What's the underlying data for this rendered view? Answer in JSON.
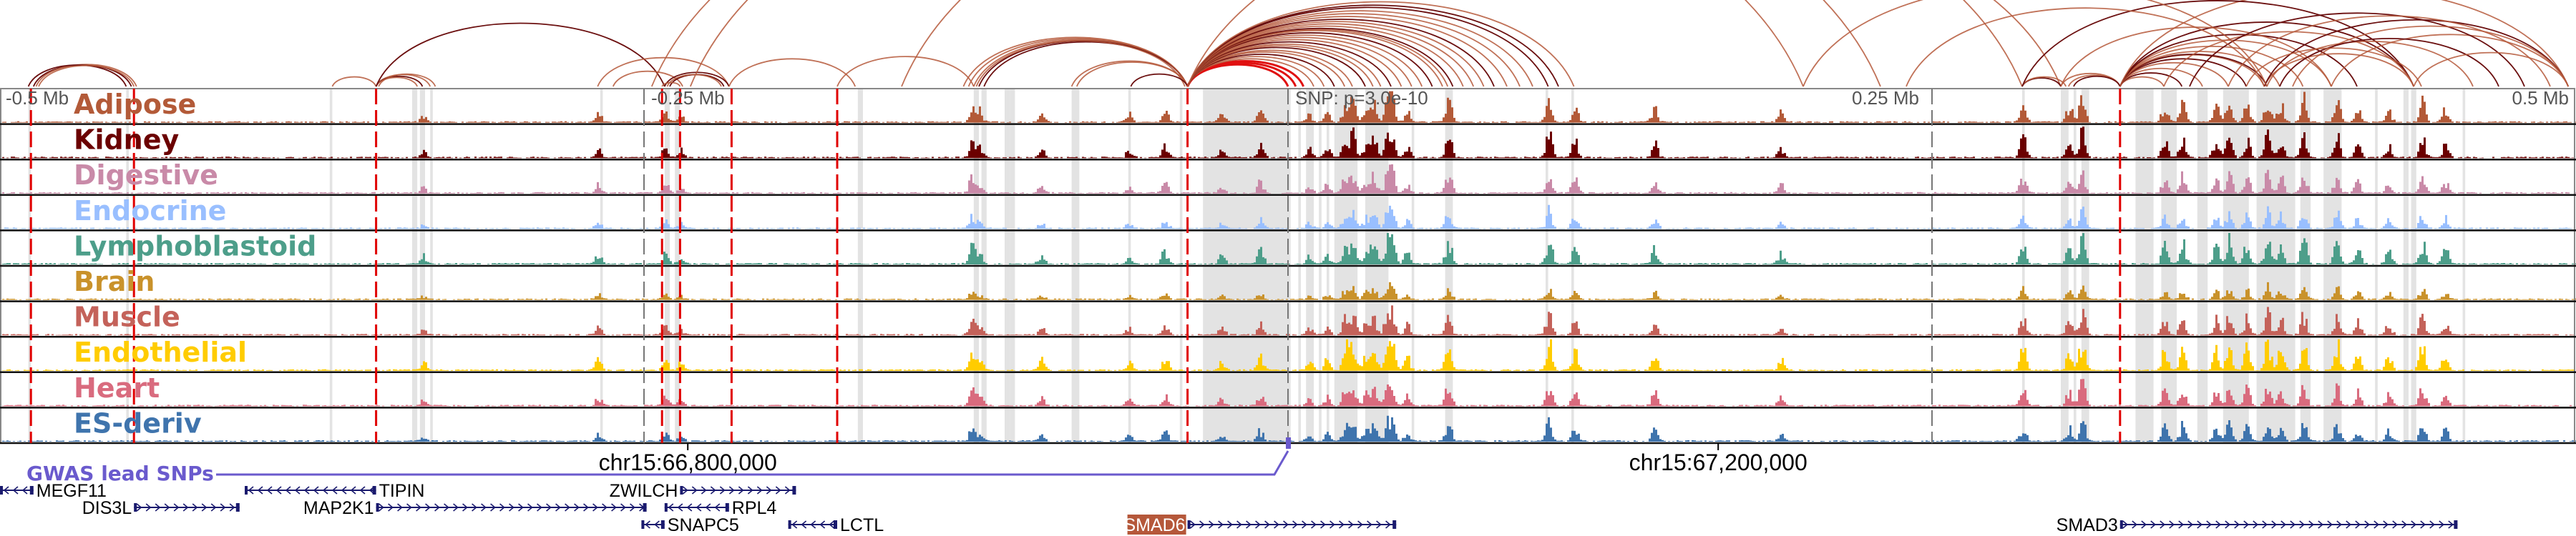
{
  "chart_data": {
    "type": "area",
    "title": "",
    "x_unit": "kb relative to lead SNP",
    "xlim": [
      -500,
      500
    ],
    "axis_labels": {
      "left": "-0.5 Mb",
      "left_mid": "-0.25 Mb",
      "center": "SNP: p=3.0e-10",
      "right_mid": "0.25 Mb",
      "right": "0.5 Mb"
    },
    "axis_ticks_kb": [
      -250,
      0,
      250
    ],
    "chrom_ticks": [
      {
        "kb": -233,
        "label": "chr15:66,800,000"
      },
      {
        "kb": 167,
        "label": "chr15:67,200,000"
      }
    ],
    "tracks": [
      {
        "name": "Adipose",
        "color": "#b35a38",
        "scale": 1.0
      },
      {
        "name": "Kidney",
        "color": "#6b0000",
        "scale": 1.0
      },
      {
        "name": "Digestive",
        "color": "#c98aa8",
        "scale": 0.9
      },
      {
        "name": "Endocrine",
        "color": "#99bfff",
        "scale": 0.7
      },
      {
        "name": "Lymphoblastoid",
        "color": "#4d9e8a",
        "scale": 1.1
      },
      {
        "name": "Brain",
        "color": "#c9922b",
        "scale": 0.5
      },
      {
        "name": "Muscle",
        "color": "#c4625a",
        "scale": 0.9
      },
      {
        "name": "Endothelial",
        "color": "#ffcc00",
        "scale": 1.2
      },
      {
        "name": "Heart",
        "color": "#d96b7e",
        "scale": 0.9
      },
      {
        "name": "ES-deriv",
        "color": "#3f74ad",
        "scale": 0.8
      }
    ],
    "peaks_kb": [
      [
        -336,
        0.25
      ],
      [
        -268,
        0.35
      ],
      [
        -242,
        0.4
      ],
      [
        -236,
        0.25
      ],
      [
        -123,
        0.65
      ],
      [
        -120,
        0.4
      ],
      [
        -96,
        0.3
      ],
      [
        -62,
        0.3
      ],
      [
        -48,
        0.5
      ],
      [
        -26,
        0.3
      ],
      [
        -11,
        0.5
      ],
      [
        8,
        0.3
      ],
      [
        15,
        0.35
      ],
      [
        22,
        0.7
      ],
      [
        25,
        0.8
      ],
      [
        30,
        0.5
      ],
      [
        33,
        0.7
      ],
      [
        38,
        0.6
      ],
      [
        40,
        0.9
      ],
      [
        46,
        0.4
      ],
      [
        62,
        0.85
      ],
      [
        101,
        0.9
      ],
      [
        111,
        0.6
      ],
      [
        142,
        0.5
      ],
      [
        191,
        0.35
      ],
      [
        285,
        0.7
      ],
      [
        303,
        0.6
      ],
      [
        308,
        0.95
      ],
      [
        340,
        0.6
      ],
      [
        347,
        0.7
      ],
      [
        360,
        0.6
      ],
      [
        365,
        0.8
      ],
      [
        372,
        0.7
      ],
      [
        380,
        0.9
      ],
      [
        385,
        0.7
      ],
      [
        394,
        0.85
      ],
      [
        407,
        0.8
      ],
      [
        415,
        0.5
      ],
      [
        427,
        0.45
      ],
      [
        440,
        0.75
      ],
      [
        449,
        0.5
      ]
    ],
    "highlight_bands_kb": [
      [
        -489,
        -488
      ],
      [
        -451,
        -450
      ],
      [
        -372,
        -371
      ],
      [
        -340,
        -338
      ],
      [
        -337,
        -335
      ],
      [
        -333,
        -332
      ],
      [
        -267,
        -266
      ],
      [
        -242,
        -240
      ],
      [
        -238,
        -236
      ],
      [
        -167,
        -165
      ],
      [
        -122,
        -120
      ],
      [
        -119,
        -117
      ],
      [
        -110,
        -108
      ],
      [
        -108,
        -106
      ],
      [
        -84,
        -81
      ],
      [
        -62,
        -61
      ],
      [
        -42,
        -41
      ],
      [
        -33,
        1
      ],
      [
        4,
        5
      ],
      [
        7,
        10
      ],
      [
        12,
        13
      ],
      [
        15,
        16
      ],
      [
        18,
        27
      ],
      [
        30,
        39
      ],
      [
        48,
        49
      ],
      [
        61,
        64
      ],
      [
        100,
        101
      ],
      [
        110,
        111
      ],
      [
        285,
        286
      ],
      [
        300,
        303
      ],
      [
        305,
        306
      ],
      [
        308,
        311
      ],
      [
        329,
        336
      ],
      [
        339,
        345
      ],
      [
        353,
        357
      ],
      [
        363,
        373
      ],
      [
        376,
        391
      ],
      [
        393,
        397
      ],
      [
        402,
        409
      ],
      [
        422,
        423
      ],
      [
        433,
        435
      ],
      [
        436,
        438
      ],
      [
        456,
        457
      ]
    ],
    "gwas_snp_lines_kb": [
      -488,
      -448,
      -354,
      -243,
      -236,
      -216,
      -175,
      -39,
      323
    ],
    "loops": [
      [
        -487,
        -449,
        1
      ],
      [
        -486,
        -447,
        0
      ],
      [
        -489,
        -451,
        1
      ],
      [
        -485,
        -448,
        0
      ],
      [
        -371,
        -354,
        0
      ],
      [
        -354,
        -333,
        0
      ],
      [
        -354,
        -336,
        1
      ],
      [
        -354,
        -338,
        0
      ],
      [
        -353,
        -331,
        0
      ],
      [
        -354,
        -242,
        1
      ],
      [
        -268,
        -217,
        0
      ],
      [
        -262,
        -235,
        0
      ],
      [
        -242,
        -217,
        1
      ],
      [
        -240,
        -219,
        1
      ],
      [
        -243,
        -236,
        0
      ],
      [
        -241,
        -220,
        0
      ],
      [
        -217,
        -168,
        0
      ],
      [
        -175,
        -122,
        0
      ],
      [
        -247,
        200,
        0
      ],
      [
        -232,
        230,
        0
      ],
      [
        -122,
        -39,
        0
      ],
      [
        -120,
        -39,
        1
      ],
      [
        -124,
        -39,
        0
      ],
      [
        -118,
        -39,
        1
      ],
      [
        -126,
        -39,
        0
      ],
      [
        -121,
        -40,
        0
      ],
      [
        -84,
        -39,
        0
      ],
      [
        -82,
        -39,
        0
      ],
      [
        -61,
        -39,
        1
      ],
      [
        -150,
        285,
        0
      ],
      [
        -39,
        0,
        2
      ],
      [
        -39,
        3,
        2
      ],
      [
        -39,
        6,
        2
      ],
      [
        -39,
        10,
        0
      ],
      [
        -39,
        14,
        0
      ],
      [
        -39,
        18,
        1
      ],
      [
        -39,
        22,
        0
      ],
      [
        -39,
        25,
        0
      ],
      [
        -39,
        30,
        1
      ],
      [
        -39,
        33,
        0
      ],
      [
        -39,
        36,
        0
      ],
      [
        -39,
        40,
        1
      ],
      [
        -39,
        44,
        0
      ],
      [
        -39,
        48,
        0
      ],
      [
        -39,
        52,
        0
      ],
      [
        -39,
        56,
        1
      ],
      [
        -39,
        60,
        0
      ],
      [
        -39,
        62,
        0
      ],
      [
        -39,
        64,
        1
      ],
      [
        -39,
        68,
        0
      ],
      [
        -39,
        72,
        0
      ],
      [
        -39,
        76,
        0
      ],
      [
        -39,
        80,
        1
      ],
      [
        -39,
        85,
        0
      ],
      [
        -39,
        90,
        0
      ],
      [
        -39,
        95,
        0
      ],
      [
        -39,
        101,
        1
      ],
      [
        -39,
        105,
        1
      ],
      [
        -39,
        111,
        0
      ],
      [
        -39,
        300,
        0
      ],
      [
        285,
        300,
        1
      ],
      [
        285,
        302,
        0
      ],
      [
        300,
        323,
        0
      ],
      [
        303,
        323,
        0
      ],
      [
        305,
        323,
        1
      ],
      [
        323,
        340,
        0
      ],
      [
        323,
        347,
        1
      ],
      [
        323,
        355,
        0
      ],
      [
        323,
        365,
        0
      ],
      [
        323,
        372,
        1
      ],
      [
        323,
        379,
        0
      ],
      [
        323,
        380,
        1
      ],
      [
        323,
        385,
        0
      ],
      [
        323,
        394,
        0
      ],
      [
        323,
        405,
        0
      ],
      [
        323,
        415,
        1
      ],
      [
        323,
        437,
        1
      ],
      [
        323,
        497,
        0
      ],
      [
        300,
        405,
        0
      ],
      [
        285,
        437,
        1
      ],
      [
        340,
        437,
        0
      ],
      [
        379,
        437,
        0
      ],
      [
        379,
        497,
        1
      ],
      [
        405,
        497,
        0
      ],
      [
        350,
        480,
        1
      ],
      [
        365,
        490,
        0
      ],
      [
        390,
        497,
        0
      ],
      [
        380,
        460,
        0
      ],
      [
        385,
        470,
        1
      ],
      [
        372,
        440,
        0
      ],
      [
        437,
        497,
        0
      ],
      [
        200,
        380,
        0
      ],
      [
        240,
        379,
        0
      ]
    ]
  },
  "gwas": {
    "label": "GWAS lead SNPs",
    "color": "#6a5acd",
    "snp_kb": 0
  },
  "genes": [
    {
      "name": "MEGF11",
      "start": -500,
      "end": -487,
      "strand": "-",
      "row": 0,
      "label_side": "right",
      "highlight": false
    },
    {
      "name": "TIPIN",
      "start": -405,
      "end": -354,
      "strand": "-",
      "row": 0,
      "label_side": "right",
      "highlight": false
    },
    {
      "name": "ZWILCH",
      "start": -236,
      "end": -191,
      "strand": "+",
      "row": 0,
      "label_side": "left",
      "highlight": false
    },
    {
      "name": "DIS3L",
      "start": -448,
      "end": -407,
      "strand": "+",
      "row": 1,
      "label_side": "left",
      "highlight": false
    },
    {
      "name": "MAP2K1",
      "start": -354,
      "end": -249,
      "strand": "+",
      "row": 1,
      "label_side": "left",
      "highlight": false
    },
    {
      "name": "RPL4",
      "start": -242,
      "end": -217,
      "strand": "-",
      "row": 1,
      "label_side": "right",
      "highlight": false
    },
    {
      "name": "SNAPC5",
      "start": -251,
      "end": -242,
      "strand": "-",
      "row": 2,
      "label_side": "right",
      "highlight": false
    },
    {
      "name": "LCTL",
      "start": -194,
      "end": -175,
      "strand": "-",
      "row": 2,
      "label_side": "right",
      "highlight": false
    },
    {
      "name": "SMAD6",
      "start": -39,
      "end": 42,
      "strand": "+",
      "row": 2,
      "label_side": "left",
      "highlight": true
    },
    {
      "name": "SMAD3",
      "start": 323,
      "end": 454,
      "strand": "+",
      "row": 2,
      "label_side": "left",
      "highlight": false
    }
  ],
  "colors": {
    "loop_light": "#b5583a",
    "loop_dark": "#6b0f0f",
    "loop_red": "#e01010",
    "band": "#e3e3e3",
    "snp_line": "#e00000",
    "gene": "#1a1a6e",
    "gene_highlight": "#b5583a"
  }
}
